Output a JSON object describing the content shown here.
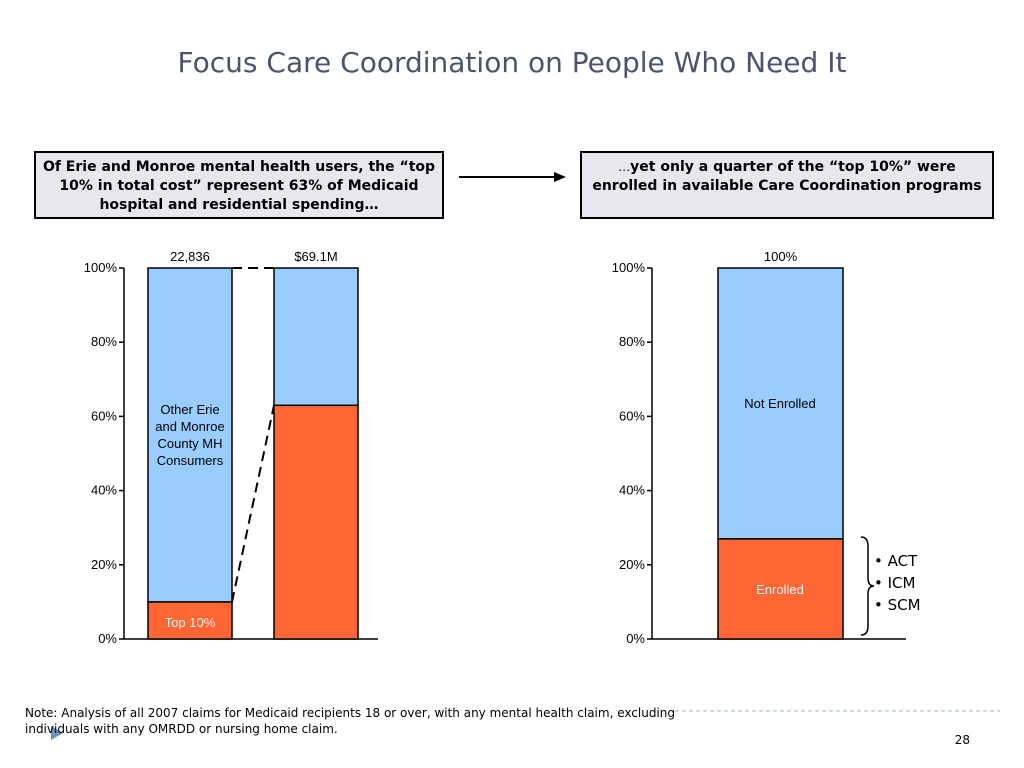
{
  "title": "Focus Care Coordination on People Who Need It",
  "callout_left": "Of Erie and Monroe mental health users,  the “top 10% in total cost” represent 63% of Medicaid hospital and residential spending…",
  "callout_right_lead": "…",
  "callout_right": "yet only a quarter of the “top 10%” were enrolled in available Care Coordination programs",
  "icons": {
    "arrow": "right-arrow-icon",
    "brace": "right-brace-icon",
    "corner": "play-triangle-icon"
  },
  "colors": {
    "light_blue": "#99ccff",
    "orange": "#ff6633",
    "title": "#4a5470",
    "callout_bg": "#e6e8ee",
    "rule": "#9fb7d6"
  },
  "chart_data": [
    {
      "type": "bar",
      "stacked": true,
      "ylim": [
        0,
        100
      ],
      "yticks": [
        "0%",
        "20%",
        "40%",
        "60%",
        "80%",
        "100%"
      ],
      "categories": [
        "22,836",
        "$69.1M"
      ],
      "series": [
        {
          "name": "Top 10%",
          "values": [
            10,
            63
          ],
          "color": "#ff6633"
        },
        {
          "name": "Other Erie and Monroe County MH Consumers",
          "values": [
            90,
            37
          ],
          "color": "#99ccff"
        }
      ],
      "labels": {
        "top": "Top 10%",
        "other": [
          "Other Erie",
          "and Monroe",
          "County MH",
          "Consumers"
        ]
      },
      "connector": "dashed lines linking Top 10% segment (10%) to 63% of spending"
    },
    {
      "type": "bar",
      "stacked": true,
      "ylim": [
        0,
        100
      ],
      "yticks": [
        "0%",
        "20%",
        "40%",
        "60%",
        "80%",
        "100%"
      ],
      "categories": [
        "100%"
      ],
      "series": [
        {
          "name": "Enrolled",
          "values": [
            27
          ],
          "color": "#ff6633"
        },
        {
          "name": "Not Enrolled",
          "values": [
            73
          ],
          "color": "#99ccff"
        }
      ]
    }
  ],
  "programs": [
    "• ACT",
    "• ICM",
    "• SCM"
  ],
  "note": "Note: Analysis of all 2007 claims for Medicaid recipients 18 or over, with any mental health claim, excluding individuals with any OMRDD or nursing home claim.",
  "page_number": "28"
}
